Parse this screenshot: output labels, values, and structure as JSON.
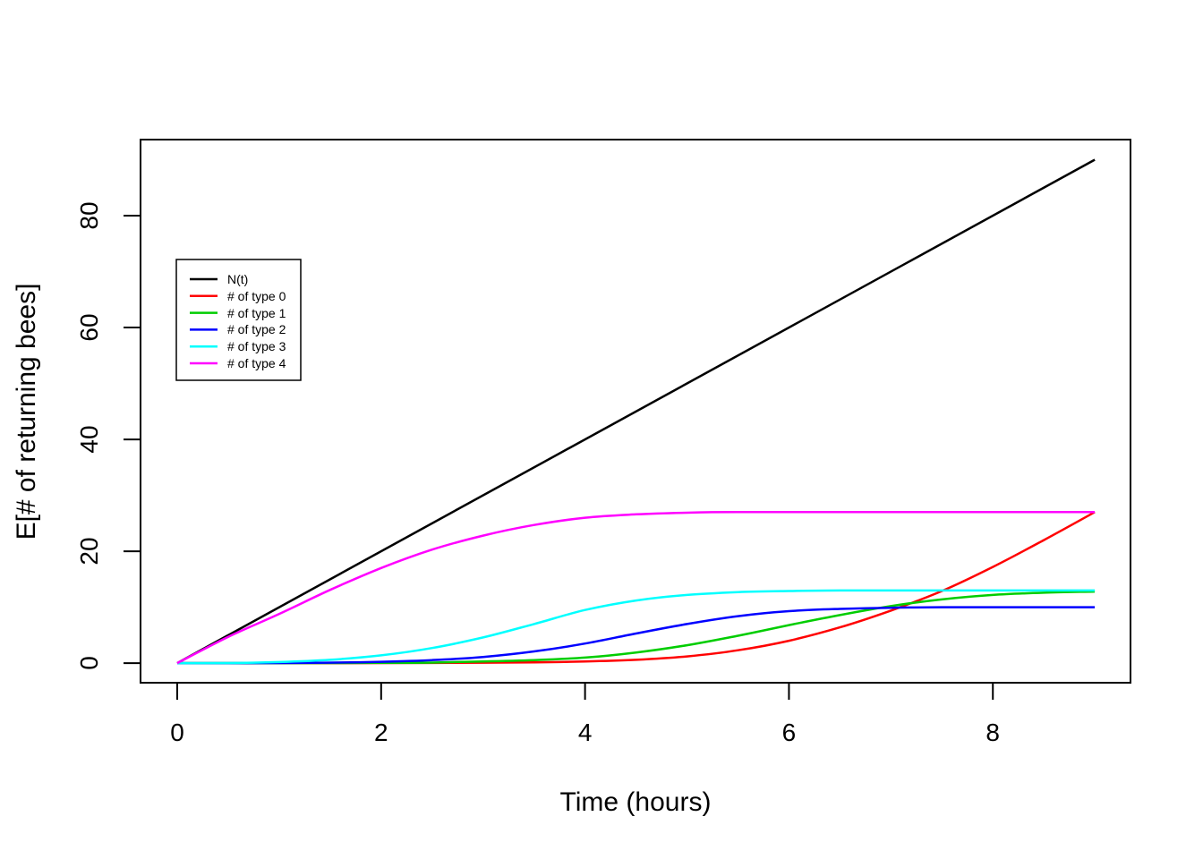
{
  "figure": {
    "background": "#FFFFFF",
    "frame_color": "#000000"
  },
  "chart_data": {
    "type": "line",
    "title": "",
    "xlabel": "Time (hours)",
    "ylabel": "E[# of returning bees]",
    "xlim": [
      -0.36,
      9.35
    ],
    "ylim": [
      -3.5,
      93.6
    ],
    "grid": false,
    "x_ticks": {
      "values": [
        0,
        2,
        4,
        6,
        8
      ],
      "labels": [
        "0",
        "2",
        "4",
        "6",
        "8"
      ]
    },
    "y_ticks": {
      "values": [
        0,
        20,
        40,
        60,
        80
      ],
      "labels": [
        "0",
        "20",
        "40",
        "60",
        "80"
      ]
    },
    "legend": {
      "position": "top-left",
      "border": true
    },
    "series": [
      {
        "name": "N(t)",
        "color": "#000000",
        "points": [
          [
            0,
            0
          ],
          [
            9,
            90
          ]
        ]
      },
      {
        "name": "# of type 0",
        "color": "#FF0000",
        "points": [
          [
            0,
            0
          ],
          [
            1,
            0
          ],
          [
            2,
            0.02
          ],
          [
            3,
            0.08
          ],
          [
            3.5,
            0.15
          ],
          [
            4,
            0.3
          ],
          [
            4.5,
            0.6
          ],
          [
            5,
            1.2
          ],
          [
            5.5,
            2.3
          ],
          [
            6,
            4.0
          ],
          [
            6.5,
            6.4
          ],
          [
            7,
            9.4
          ],
          [
            7.5,
            12.9
          ],
          [
            8,
            17.2
          ],
          [
            8.5,
            22.0
          ],
          [
            9,
            27
          ]
        ]
      },
      {
        "name": "# of type 1",
        "color": "#00CD00",
        "points": [
          [
            0,
            0
          ],
          [
            1,
            0
          ],
          [
            2,
            0.05
          ],
          [
            2.5,
            0.1
          ],
          [
            3,
            0.3
          ],
          [
            3.5,
            0.55
          ],
          [
            4,
            1.0
          ],
          [
            4.5,
            1.9
          ],
          [
            5,
            3.2
          ],
          [
            5.5,
            4.9
          ],
          [
            6,
            6.8
          ],
          [
            6.5,
            8.6
          ],
          [
            7,
            10.2
          ],
          [
            7.5,
            11.4
          ],
          [
            8,
            12.2
          ],
          [
            8.5,
            12.6
          ],
          [
            9,
            12.8
          ]
        ]
      },
      {
        "name": "# of type 2",
        "color": "#0000FF",
        "points": [
          [
            0,
            0
          ],
          [
            1,
            0.02
          ],
          [
            2,
            0.25
          ],
          [
            2.5,
            0.55
          ],
          [
            3,
            1.1
          ],
          [
            3.5,
            2.1
          ],
          [
            4,
            3.5
          ],
          [
            4.5,
            5.3
          ],
          [
            5,
            7.0
          ],
          [
            5.5,
            8.4
          ],
          [
            6,
            9.3
          ],
          [
            6.5,
            9.7
          ],
          [
            7,
            9.9
          ],
          [
            7.5,
            10
          ],
          [
            8,
            10
          ],
          [
            9,
            10
          ]
        ]
      },
      {
        "name": "# of type 3",
        "color": "#00FFFF",
        "points": [
          [
            0,
            0
          ],
          [
            0.5,
            0.02
          ],
          [
            1,
            0.2
          ],
          [
            1.5,
            0.6
          ],
          [
            2,
            1.4
          ],
          [
            2.5,
            2.7
          ],
          [
            3,
            4.6
          ],
          [
            3.5,
            7.0
          ],
          [
            4,
            9.5
          ],
          [
            4.5,
            11.2
          ],
          [
            5,
            12.2
          ],
          [
            5.5,
            12.7
          ],
          [
            6,
            12.9
          ],
          [
            6.5,
            13
          ],
          [
            7,
            13
          ],
          [
            8,
            13
          ],
          [
            9,
            13
          ]
        ]
      },
      {
        "name": "# of type 4",
        "color": "#FF00FF",
        "points": [
          [
            0,
            0
          ],
          [
            0.5,
            4.7
          ],
          [
            1,
            8.8
          ],
          [
            1.5,
            13.1
          ],
          [
            2,
            17.0
          ],
          [
            2.5,
            20.3
          ],
          [
            3,
            22.8
          ],
          [
            3.5,
            24.7
          ],
          [
            4,
            26.0
          ],
          [
            4.5,
            26.6
          ],
          [
            5,
            26.9
          ],
          [
            5.5,
            27
          ],
          [
            6,
            27
          ],
          [
            7,
            27
          ],
          [
            8,
            27
          ],
          [
            9,
            27
          ]
        ]
      }
    ]
  }
}
